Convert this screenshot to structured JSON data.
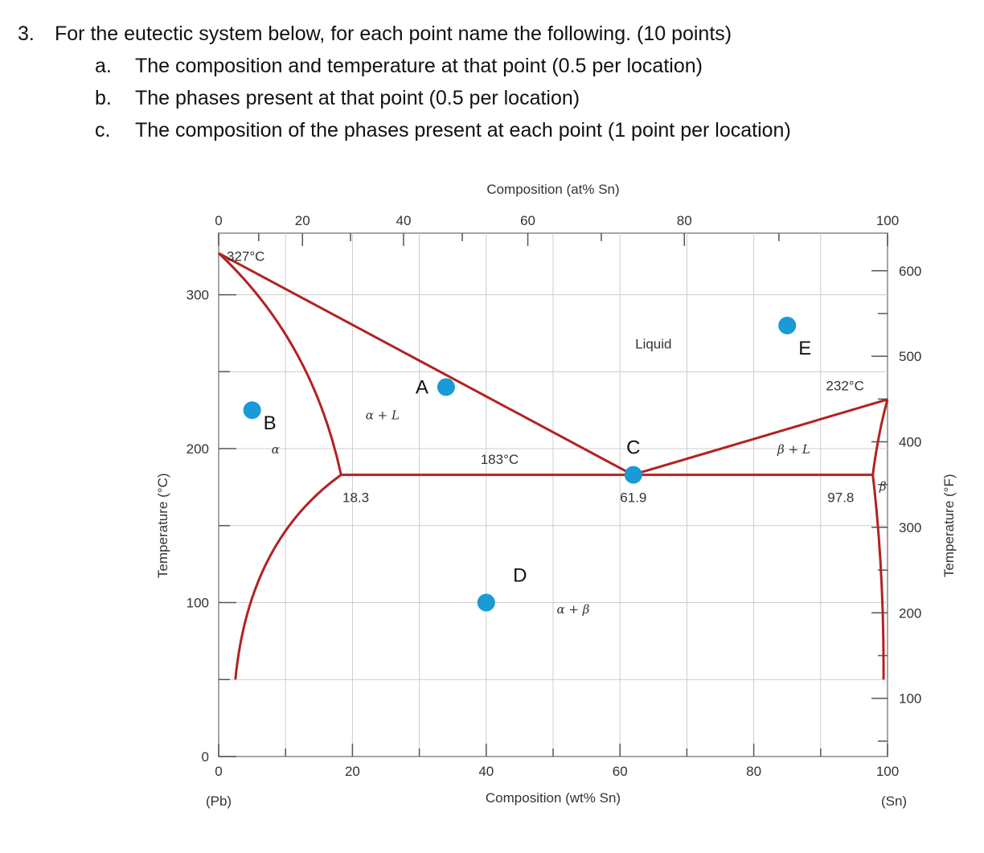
{
  "question": {
    "number": "3.",
    "text": "For the eutectic system below, for each point name the following. (10 points)",
    "items": [
      {
        "letter": "a.",
        "text": "The composition and temperature at that point (0.5 per location)"
      },
      {
        "letter": "b.",
        "text": "The phases present at that point (0.5 per location)"
      },
      {
        "letter": "c.",
        "text": "The composition of the phases present at each point (1 point per location)"
      }
    ]
  },
  "chart_data": {
    "type": "phase_diagram",
    "title": "",
    "xlabel_bottom": "Composition (wt% Sn)",
    "xlabel_top": "Composition (at% Sn)",
    "ylabel_left": "Temperature (°C)",
    "ylabel_right": "Temperature (°F)",
    "xlim": [
      0,
      100
    ],
    "ylim": [
      0,
      340
    ],
    "x_ticks": [
      "0",
      "20",
      "40",
      "60",
      "80",
      "100"
    ],
    "x_top_ticks": [
      "0",
      "20",
      "40",
      "60",
      "80",
      "100"
    ],
    "y_ticks": [
      "0",
      "100",
      "200",
      "300"
    ],
    "y_right_ticks": [
      "100",
      "200",
      "300",
      "400",
      "500",
      "600"
    ],
    "end_labels": {
      "left": "(Pb)",
      "right": "(Sn)"
    },
    "annotations": {
      "pb_melt": "327°C",
      "sn_melt": "232°C",
      "eutectic_temp": "183°C",
      "alpha_max": "18.3",
      "eutectic_comp": "61.9",
      "beta_max": "97.8"
    },
    "region_labels": {
      "liquid": "Liquid",
      "alpha_liquid": "α + L",
      "beta_liquid": "β + L",
      "alpha": "α",
      "beta": "β",
      "alpha_beta": "α + β"
    },
    "points": [
      {
        "label": "A",
        "x": 34,
        "y": 240
      },
      {
        "label": "B",
        "x": 5,
        "y": 225
      },
      {
        "label": "C",
        "x": 62,
        "y": 183
      },
      {
        "label": "D",
        "x": 40,
        "y": 100
      },
      {
        "label": "E",
        "x": 85,
        "y": 280
      }
    ],
    "colors": {
      "phase_line": "#b22222",
      "point": "#1a9ad6",
      "grid": "#cccccc"
    }
  }
}
